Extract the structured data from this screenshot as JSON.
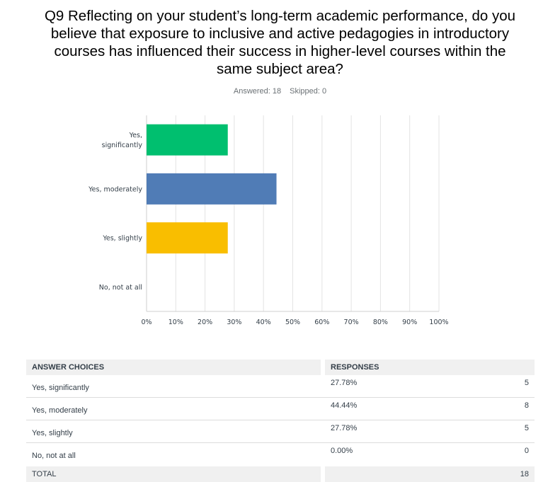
{
  "question": {
    "title_lines": [
      "Q9 Reflecting on your student’s long-term academic performance, do you",
      "believe that exposure to inclusive and active pedagogies in introductory",
      "courses has influenced their success in higher-level courses within the",
      "same subject area?"
    ],
    "answered": "Answered: 18",
    "skipped": "Skipped: 0"
  },
  "chart_data": {
    "type": "bar",
    "orientation": "horizontal",
    "categories": [
      "Yes, significantly",
      "Yes, moderately",
      "Yes, slightly",
      "No, not at all"
    ],
    "category_label_lines": [
      [
        "Yes,",
        "significantly"
      ],
      [
        "Yes, moderately"
      ],
      [
        "Yes, slightly"
      ],
      [
        "No, not at all"
      ]
    ],
    "values": [
      27.78,
      44.44,
      27.78,
      0
    ],
    "colors": [
      "#00bf6f",
      "#507cb6",
      "#f9be00",
      "#6bc8cd"
    ],
    "xlim": [
      0,
      100
    ],
    "xticks": [
      "0%",
      "10%",
      "20%",
      "30%",
      "40%",
      "50%",
      "60%",
      "70%",
      "80%",
      "90%",
      "100%"
    ],
    "grid": true,
    "title": "",
    "xlabel": "",
    "ylabel": ""
  },
  "table": {
    "headers": [
      "ANSWER CHOICES",
      "RESPONSES"
    ],
    "rows": [
      {
        "choice": "Yes, significantly",
        "percent": "27.78%",
        "count": "5"
      },
      {
        "choice": "Yes, moderately",
        "percent": "44.44%",
        "count": "8"
      },
      {
        "choice": "Yes, slightly",
        "percent": "27.78%",
        "count": "5"
      },
      {
        "choice": "No, not at all",
        "percent": "0.00%",
        "count": "0"
      }
    ],
    "total_label": "TOTAL",
    "total_count": "18"
  }
}
